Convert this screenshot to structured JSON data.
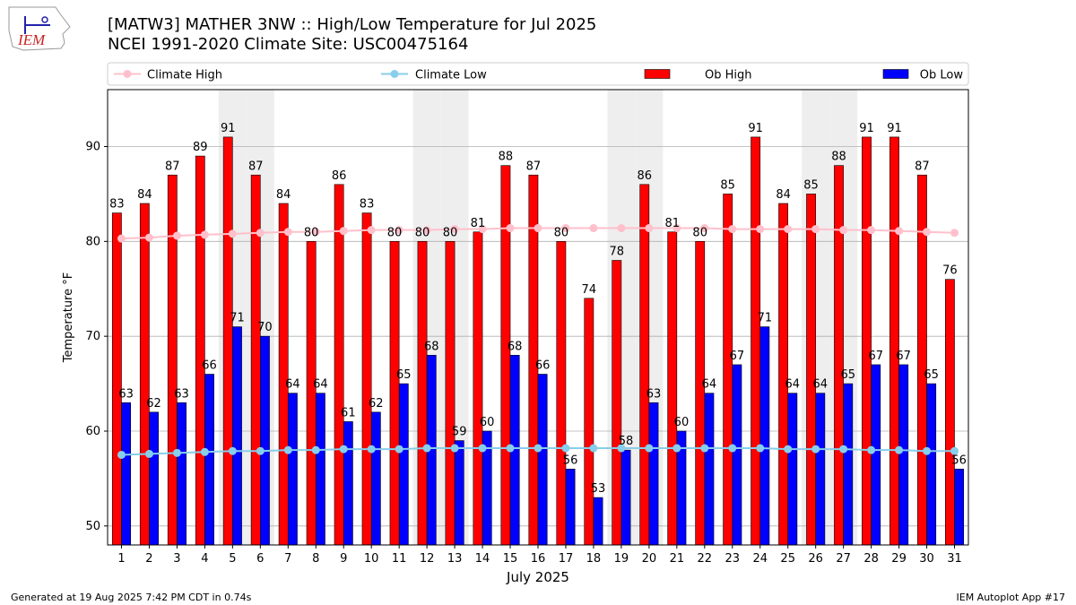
{
  "logo_text": "IEM",
  "chart_data": {
    "type": "bar",
    "title": "[MATW3] MATHER 3NW :: High/Low Temperature for Jul 2025",
    "subtitle": "NCEI 1991-2020 Climate Site: USC00475164",
    "xlabel": "July 2025",
    "ylabel": "Temperature °F",
    "ylim": [
      48,
      96
    ],
    "yticks": [
      50,
      60,
      70,
      80,
      90
    ],
    "grid": true,
    "legend_position": "top",
    "weekend_days": [
      5,
      6,
      12,
      13,
      19,
      20,
      26,
      27
    ],
    "categories": [
      "1",
      "2",
      "3",
      "4",
      "5",
      "6",
      "7",
      "8",
      "9",
      "10",
      "11",
      "12",
      "13",
      "14",
      "15",
      "16",
      "17",
      "18",
      "19",
      "20",
      "21",
      "22",
      "23",
      "24",
      "25",
      "26",
      "27",
      "28",
      "29",
      "30",
      "31"
    ],
    "series": [
      {
        "name": "Ob High",
        "type": "bar",
        "color": "#ff0000",
        "values": [
          83,
          84,
          87,
          89,
          91,
          87,
          84,
          80,
          86,
          83,
          80,
          80,
          80,
          81,
          88,
          87,
          80,
          74,
          78,
          86,
          81,
          80,
          85,
          91,
          84,
          85,
          88,
          91,
          91,
          87,
          76
        ]
      },
      {
        "name": "Ob Low",
        "type": "bar",
        "color": "#0000ff",
        "values": [
          63,
          62,
          63,
          66,
          71,
          70,
          64,
          64,
          61,
          62,
          65,
          68,
          59,
          60,
          68,
          66,
          56,
          53,
          58,
          63,
          60,
          64,
          67,
          71,
          64,
          64,
          65,
          67,
          67,
          65,
          56
        ]
      },
      {
        "name": "Climate High",
        "type": "line",
        "color": "#ffc0cb",
        "values": [
          80.3,
          80.4,
          80.6,
          80.7,
          80.8,
          80.9,
          81.0,
          81.0,
          81.1,
          81.2,
          81.2,
          81.2,
          81.3,
          81.3,
          81.4,
          81.4,
          81.4,
          81.4,
          81.4,
          81.4,
          81.4,
          81.4,
          81.3,
          81.3,
          81.3,
          81.3,
          81.2,
          81.2,
          81.1,
          81.0,
          80.9
        ]
      },
      {
        "name": "Climate Low",
        "type": "line",
        "color": "#87ceeb",
        "values": [
          57.5,
          57.6,
          57.7,
          57.8,
          57.9,
          57.9,
          58.0,
          58.0,
          58.1,
          58.1,
          58.1,
          58.2,
          58.2,
          58.2,
          58.2,
          58.2,
          58.2,
          58.2,
          58.2,
          58.2,
          58.2,
          58.2,
          58.2,
          58.2,
          58.1,
          58.1,
          58.1,
          58.0,
          58.0,
          57.9,
          57.9
        ]
      }
    ],
    "legend": [
      {
        "name": "Climate High",
        "kind": "line",
        "color": "#ffc0cb"
      },
      {
        "name": "Climate Low",
        "kind": "line",
        "color": "#87ceeb"
      },
      {
        "name": "Ob High",
        "kind": "bar",
        "color": "#ff0000"
      },
      {
        "name": "Ob Low",
        "kind": "bar",
        "color": "#0000ff"
      }
    ]
  },
  "footer": {
    "left": "Generated at 19 Aug 2025 7:42 PM CDT in 0.74s",
    "right": "IEM Autoplot App #17"
  }
}
